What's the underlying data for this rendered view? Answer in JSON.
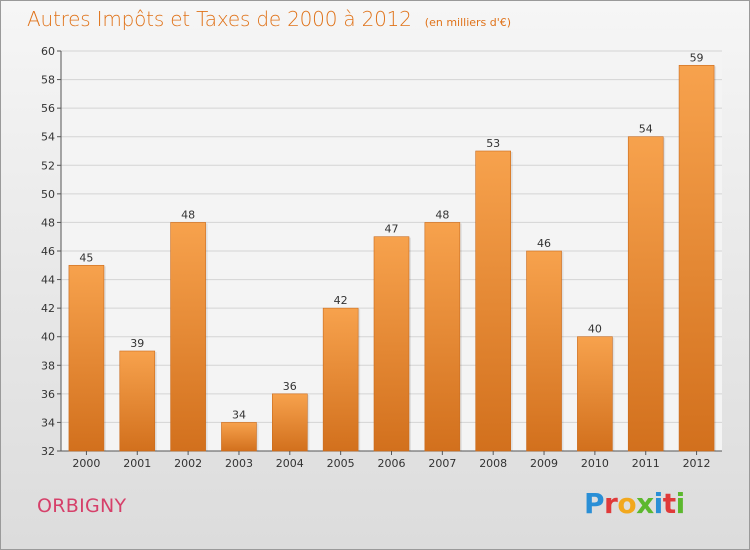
{
  "title": "Autres Impôts et Taxes de 2000 à 2012",
  "unit_label": "(en milliers d'€)",
  "commune": "ORBIGNY",
  "logo": {
    "text": "Proxiti",
    "letters": [
      {
        "char": "P",
        "color": "#2a8fd6"
      },
      {
        "char": "r",
        "color": "#e03a3a"
      },
      {
        "char": "o",
        "color": "#f2a81d"
      },
      {
        "char": "x",
        "color": "#5cb82e"
      },
      {
        "char": "i",
        "color": "#2a8fd6"
      },
      {
        "char": "t",
        "color": "#e03a3a"
      },
      {
        "char": "i",
        "color": "#5cb82e"
      }
    ]
  },
  "colors": {
    "bar_light": "#f7a24d",
    "bar_dark": "#d2701d",
    "title": "#e0731a",
    "commune": "#d6406a"
  },
  "chart_data": {
    "type": "bar",
    "title": "Autres Impôts et Taxes de 2000 à 2012",
    "subtitle": "(en milliers d'€)",
    "xlabel": "",
    "ylabel": "",
    "categories": [
      "2000",
      "2001",
      "2002",
      "2003",
      "2004",
      "2005",
      "2006",
      "2007",
      "2008",
      "2009",
      "2010",
      "2011",
      "2012"
    ],
    "values": [
      45,
      39,
      48,
      34,
      36,
      42,
      47,
      48,
      53,
      46,
      40,
      54,
      59
    ],
    "ylim": [
      32,
      60
    ],
    "yticks": [
      32,
      34,
      36,
      38,
      40,
      42,
      44,
      46,
      48,
      50,
      52,
      54,
      56,
      58,
      60
    ],
    "grid": true,
    "legend": "none"
  }
}
